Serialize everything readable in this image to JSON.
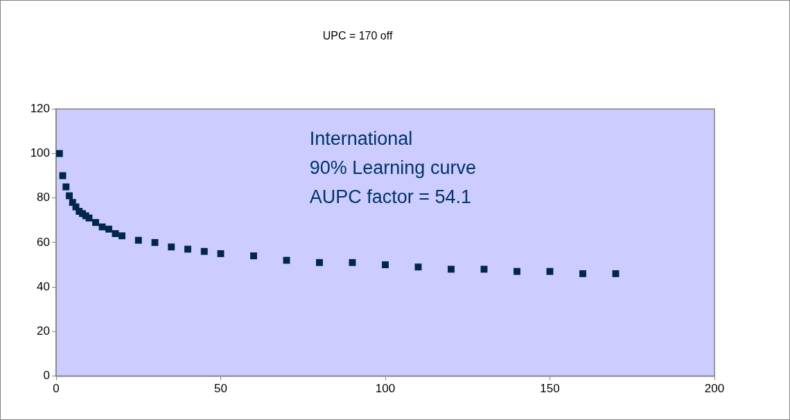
{
  "chart_data": {
    "type": "scatter",
    "title": "UPC = 170 off",
    "x": [
      1,
      2,
      3,
      4,
      5,
      6,
      7,
      8,
      9,
      10,
      12,
      14,
      16,
      18,
      20,
      25,
      30,
      35,
      40,
      45,
      50,
      60,
      70,
      80,
      90,
      100,
      110,
      120,
      130,
      140,
      150,
      160,
      170
    ],
    "series": [
      {
        "color": "#00264a",
        "values": [
          100,
          90,
          85,
          81,
          78,
          76,
          74,
          73,
          72,
          71,
          69,
          67,
          66,
          64,
          63,
          61,
          60,
          58,
          57,
          56,
          55,
          54,
          52,
          51,
          51,
          50,
          49,
          48,
          48,
          47,
          47,
          46,
          46
        ]
      }
    ],
    "xlim": [
      0,
      200
    ],
    "xticks": [
      0,
      50,
      100,
      150,
      200
    ],
    "ylim": [
      0,
      120
    ],
    "yticks": [
      0,
      20,
      40,
      60,
      80,
      100,
      120
    ],
    "marker": "square",
    "grid": false,
    "legend": false,
    "annotations": [
      "International\n90% Learning curve\nAUPC factor = 54.1"
    ]
  }
}
